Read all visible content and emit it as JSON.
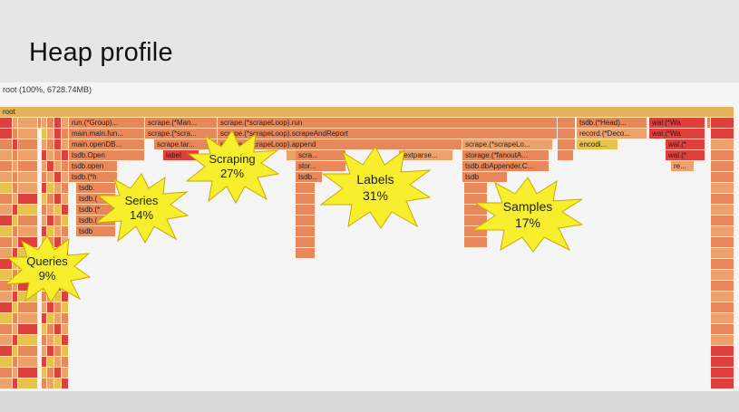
{
  "slide": {
    "title": "Heap profile"
  },
  "profile": {
    "root_summary": "root (100%, 6728.74MB)",
    "colors": {
      "root": "#e3b35a",
      "orange": "#e8885a",
      "lightorange": "#eca26a",
      "red": "#e0403c",
      "darkred": "#d02828",
      "yellow": "#e6c34d"
    },
    "frame_labels": {
      "root": "root",
      "run_group": "run.(*Group)...",
      "main_main_fun": "main.main.fun...",
      "main_openDB": "main.openDB...",
      "tsdb_Open": "tsdb.Open",
      "tsdb_open": "tsdb.open",
      "tsdb_p": "tsdb.(*h",
      "tsdb_a": "tsdb.",
      "tsdb_b": "tsdb.(",
      "tsdb_c": "tsdb.(*",
      "tsdb_d": "tsdb.(",
      "tsdb_e": "tsdb",
      "scrape_man": "scrape.(*Man...",
      "scrape_scra": "scrape.(*scra...",
      "scrape_tar": "scrape.tar...",
      "labels_short": "label",
      "scrapeloop_run": "scrape.(*scrapeLoop).run",
      "scrapeloop_report": "scrape.(*scrapeLoop).scrapeAndReport",
      "scrapeloop_append": "scrape.(*scrapeLoop).append",
      "scra_short": "scra...",
      "stor_short": "stor...",
      "tsdb_short": "tsdb...",
      "textparse": "textparse...",
      "scrape_scrapelo": "scrape.(*scrapeLo...",
      "storage_fanout": "storage.(*fanoutA...",
      "tsdb_dbappender": "tsdb.dbAppender.C...",
      "tsdb_head_long": "tsdb.(*Head)...",
      "record_deco": "record.(*Deco...",
      "encodi": "encodi...",
      "wal_wa": "wal.(*Wa",
      "wal_w": "wal.(*",
      "re": "re..."
    },
    "annotations": [
      {
        "label": "Queries",
        "percent": "9%"
      },
      {
        "label": "Series",
        "percent": "14%"
      },
      {
        "label": "Scraping",
        "percent": "27%"
      },
      {
        "label": "Labels",
        "percent": "31%"
      },
      {
        "label": "Samples",
        "percent": "17%"
      }
    ]
  }
}
